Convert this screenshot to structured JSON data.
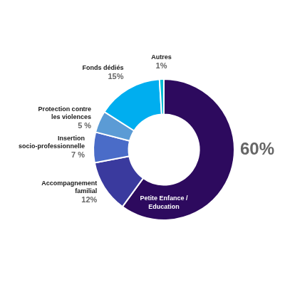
{
  "chart_data": {
    "type": "doughnut",
    "categories": [
      "Petite Enfance /\nEducation",
      "Accompagnement\nfamilial",
      "Insertion\nsocio-professionnelle",
      "Protection contre\nles violences",
      "Fonds dédiés",
      "Autres"
    ],
    "values": [
      60,
      12,
      7,
      5,
      15,
      1
    ],
    "value_labels": [
      "60%",
      "12%",
      "7 %",
      "5 %",
      "15%",
      "1%"
    ],
    "colors": [
      "#2D0A5E",
      "#3A3A9E",
      "#4A6CC8",
      "#5B9BD5",
      "#00AEEF",
      "#00BCD4"
    ],
    "data_labels": true
  }
}
